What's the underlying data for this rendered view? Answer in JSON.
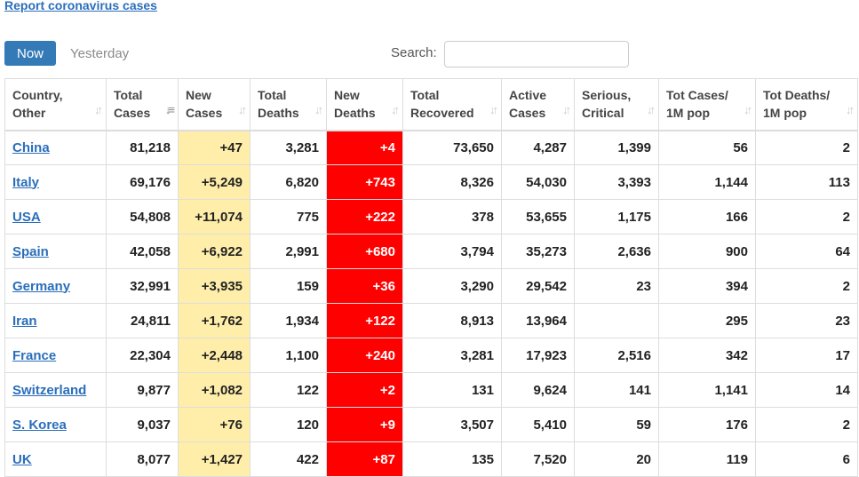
{
  "report_link": "Report coronavirus cases",
  "tabs": {
    "now": "Now",
    "yesterday": "Yesterday"
  },
  "search": {
    "label": "Search:",
    "value": "",
    "placeholder": ""
  },
  "colors": {
    "new_cases_bg": "#ffeeaa",
    "new_deaths_bg": "#ff0000",
    "link": "#2a6ebb",
    "accent": "#337ab7"
  },
  "table": {
    "headers": [
      [
        "Country,",
        "Other"
      ],
      [
        "Total",
        "Cases"
      ],
      [
        "New",
        "Cases"
      ],
      [
        "Total",
        "Deaths"
      ],
      [
        "New",
        "Deaths"
      ],
      [
        "Total",
        "Recovered"
      ],
      [
        "Active",
        "Cases"
      ],
      [
        "Serious,",
        "Critical"
      ],
      [
        "Tot Cases/",
        "1M pop"
      ],
      [
        "Tot Deaths/",
        "1M pop"
      ]
    ],
    "rows": [
      [
        "China",
        "81,218",
        "+47",
        "3,281",
        "+4",
        "73,650",
        "4,287",
        "1,399",
        "56",
        "2"
      ],
      [
        "Italy",
        "69,176",
        "+5,249",
        "6,820",
        "+743",
        "8,326",
        "54,030",
        "3,393",
        "1,144",
        "113"
      ],
      [
        "USA",
        "54,808",
        "+11,074",
        "775",
        "+222",
        "378",
        "53,655",
        "1,175",
        "166",
        "2"
      ],
      [
        "Spain",
        "42,058",
        "+6,922",
        "2,991",
        "+680",
        "3,794",
        "35,273",
        "2,636",
        "900",
        "64"
      ],
      [
        "Germany",
        "32,991",
        "+3,935",
        "159",
        "+36",
        "3,290",
        "29,542",
        "23",
        "394",
        "2"
      ],
      [
        "Iran",
        "24,811",
        "+1,762",
        "1,934",
        "+122",
        "8,913",
        "13,964",
        "",
        "295",
        "23"
      ],
      [
        "France",
        "22,304",
        "+2,448",
        "1,100",
        "+240",
        "3,281",
        "17,923",
        "2,516",
        "342",
        "17"
      ],
      [
        "Switzerland",
        "9,877",
        "+1,082",
        "122",
        "+2",
        "131",
        "9,624",
        "141",
        "1,141",
        "14"
      ],
      [
        "S. Korea",
        "9,037",
        "+76",
        "120",
        "+9",
        "3,507",
        "5,410",
        "59",
        "176",
        "2"
      ],
      [
        "UK",
        "8,077",
        "+1,427",
        "422",
        "+87",
        "135",
        "7,520",
        "20",
        "119",
        "6"
      ]
    ]
  }
}
